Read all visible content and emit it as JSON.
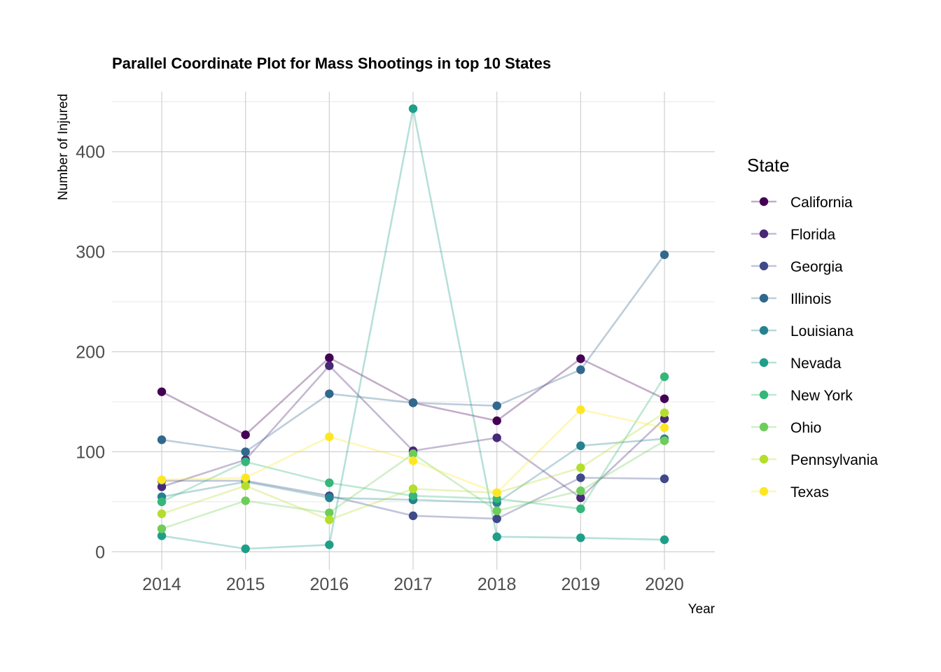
{
  "chart_data": {
    "type": "line",
    "title": "Parallel Coordinate Plot for Mass Shootings in top 10 States",
    "xlabel": "Year",
    "ylabel": "Number of Injured",
    "x": [
      "2014",
      "2015",
      "2016",
      "2017",
      "2018",
      "2019",
      "2020"
    ],
    "ylim": [
      -18,
      460
    ],
    "yticks": [
      0,
      100,
      200,
      300,
      400
    ],
    "grid": true,
    "legend": {
      "title": "State",
      "position": "right"
    },
    "series": [
      {
        "name": "California",
        "color": "#440154",
        "values": [
          160,
          117,
          194,
          149,
          131,
          193,
          153
        ]
      },
      {
        "name": "Florida",
        "color": "#482878",
        "values": [
          65,
          92,
          186,
          101,
          114,
          54,
          133
        ]
      },
      {
        "name": "Georgia",
        "color": "#3E4A89",
        "values": [
          71,
          71,
          56,
          36,
          33,
          74,
          73
        ]
      },
      {
        "name": "Illinois",
        "color": "#31688E",
        "values": [
          112,
          100,
          158,
          149,
          146,
          182,
          297
        ]
      },
      {
        "name": "Louisiana",
        "color": "#26828E",
        "values": [
          55,
          70,
          54,
          52,
          49,
          106,
          113
        ]
      },
      {
        "name": "Nevada",
        "color": "#1F9E89",
        "values": [
          16,
          3,
          7,
          443,
          15,
          14,
          12
        ]
      },
      {
        "name": "New York",
        "color": "#35B779",
        "values": [
          50,
          90,
          69,
          56,
          53,
          43,
          175
        ]
      },
      {
        "name": "Ohio",
        "color": "#6DCD59",
        "values": [
          23,
          51,
          39,
          98,
          41,
          61,
          111
        ]
      },
      {
        "name": "Pennsylvania",
        "color": "#B4DE2C",
        "values": [
          38,
          66,
          32,
          63,
          59,
          84,
          139
        ]
      },
      {
        "name": "Texas",
        "color": "#FDE725",
        "values": [
          72,
          74,
          115,
          91,
          59,
          142,
          124
        ]
      }
    ]
  }
}
